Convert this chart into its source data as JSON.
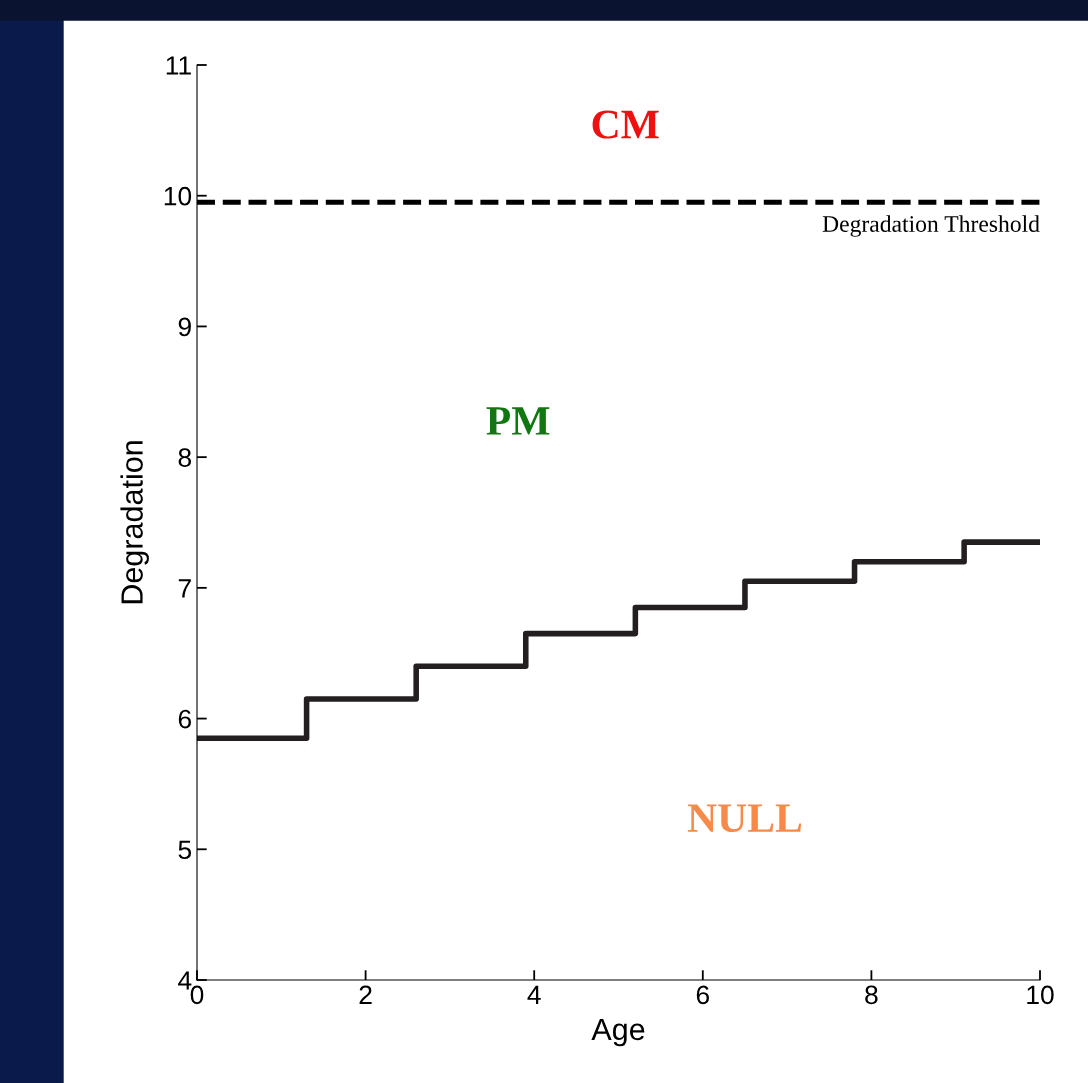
{
  "chart_data": {
    "type": "step",
    "xlabel": "Age",
    "ylabel": "Degradation",
    "x": [
      0,
      1.3,
      2.6,
      3.9,
      5.2,
      6.5,
      7.8,
      9.1,
      10
    ],
    "series": [
      {
        "color": "#231f20",
        "values": [
          5.85,
          6.15,
          6.4,
          6.65,
          6.85,
          7.05,
          7.2,
          7.35,
          7.35
        ]
      }
    ],
    "xlim": [
      0,
      10
    ],
    "xticks": [
      0,
      2,
      4,
      6,
      8,
      10
    ],
    "ylim": [
      4,
      11
    ],
    "yticks": [
      4,
      5,
      6,
      7,
      8,
      9,
      10,
      11
    ],
    "ref_lines": [
      {
        "axis": "y",
        "value": 9.95,
        "label": "Degradation Threshold",
        "color": "#000000",
        "line_style": "dashed"
      }
    ],
    "annotations": [
      "CM",
      "PM",
      "NULL"
    ],
    "grid": false,
    "legend": false,
    "marker": "none",
    "line_style": "solid"
  }
}
